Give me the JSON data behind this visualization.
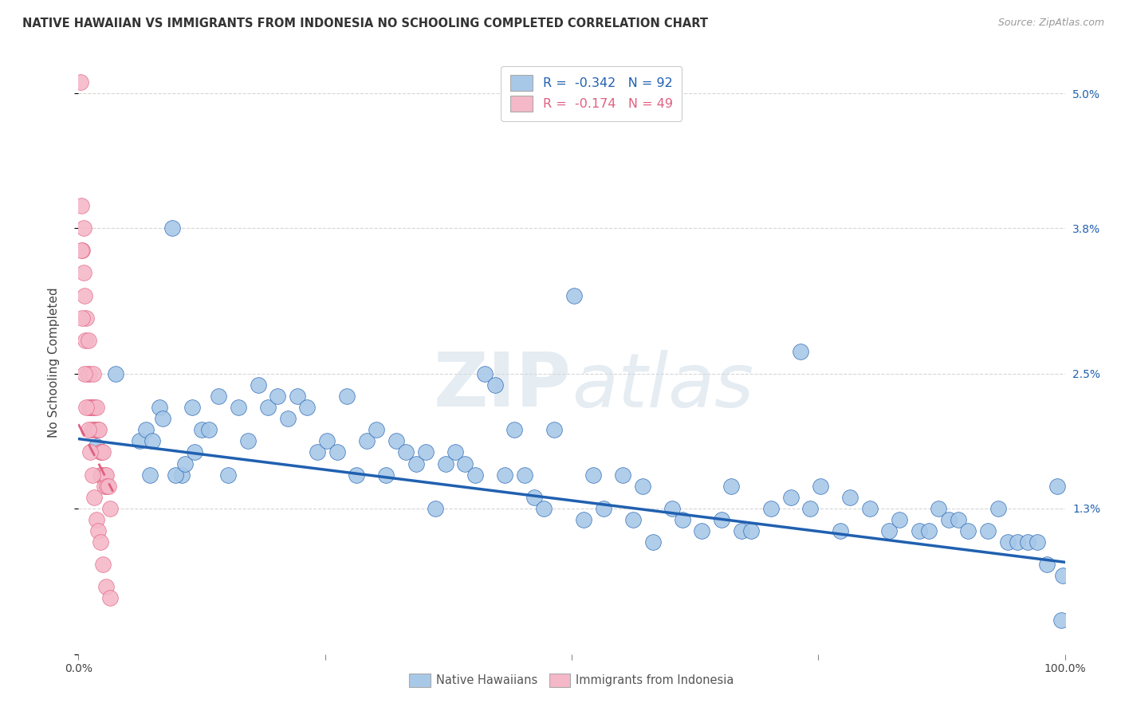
{
  "title": "NATIVE HAWAIIAN VS IMMIGRANTS FROM INDONESIA NO SCHOOLING COMPLETED CORRELATION CHART",
  "source": "Source: ZipAtlas.com",
  "ylabel": "No Schooling Completed",
  "watermark_zip": "ZIP",
  "watermark_atlas": "atlas",
  "legend_r1": "-0.342",
  "legend_n1": "92",
  "legend_r2": "-0.174",
  "legend_n2": "49",
  "xlim": [
    0.0,
    1.0
  ],
  "ylim": [
    0.0,
    0.052
  ],
  "xticks": [
    0.0,
    0.25,
    0.5,
    0.75,
    1.0
  ],
  "xticklabels": [
    "0.0%",
    "",
    "",
    "",
    "100.0%"
  ],
  "yticks": [
    0.0,
    0.013,
    0.025,
    0.038,
    0.05
  ],
  "yticklabels": [
    "",
    "1.3%",
    "2.5%",
    "3.8%",
    "5.0%"
  ],
  "color_blue": "#a8c8e8",
  "color_pink": "#f5b8c8",
  "line_blue": "#2060b0",
  "line_pink": "#e06080",
  "background": "#ffffff",
  "grid_color": "#cccccc",
  "blue_x": [
    0.018,
    0.038,
    0.062,
    0.068,
    0.072,
    0.082,
    0.095,
    0.105,
    0.115,
    0.125,
    0.132,
    0.142,
    0.152,
    0.162,
    0.172,
    0.182,
    0.192,
    0.202,
    0.212,
    0.222,
    0.232,
    0.242,
    0.252,
    0.262,
    0.272,
    0.282,
    0.292,
    0.302,
    0.312,
    0.322,
    0.332,
    0.342,
    0.352,
    0.362,
    0.372,
    0.382,
    0.392,
    0.402,
    0.412,
    0.422,
    0.432,
    0.442,
    0.452,
    0.462,
    0.472,
    0.482,
    0.502,
    0.512,
    0.522,
    0.532,
    0.552,
    0.562,
    0.572,
    0.582,
    0.602,
    0.612,
    0.632,
    0.652,
    0.662,
    0.672,
    0.682,
    0.702,
    0.722,
    0.732,
    0.742,
    0.752,
    0.772,
    0.782,
    0.802,
    0.822,
    0.832,
    0.852,
    0.862,
    0.872,
    0.882,
    0.892,
    0.902,
    0.922,
    0.932,
    0.942,
    0.952,
    0.962,
    0.972,
    0.982,
    0.992,
    0.996,
    0.998,
    0.075,
    0.085,
    0.098,
    0.108,
    0.118
  ],
  "blue_y": [
    0.0185,
    0.025,
    0.019,
    0.02,
    0.016,
    0.022,
    0.038,
    0.016,
    0.022,
    0.02,
    0.02,
    0.023,
    0.016,
    0.022,
    0.019,
    0.024,
    0.022,
    0.023,
    0.021,
    0.023,
    0.022,
    0.018,
    0.019,
    0.018,
    0.023,
    0.016,
    0.019,
    0.02,
    0.016,
    0.019,
    0.018,
    0.017,
    0.018,
    0.013,
    0.017,
    0.018,
    0.017,
    0.016,
    0.025,
    0.024,
    0.016,
    0.02,
    0.016,
    0.014,
    0.013,
    0.02,
    0.032,
    0.012,
    0.016,
    0.013,
    0.016,
    0.012,
    0.015,
    0.01,
    0.013,
    0.012,
    0.011,
    0.012,
    0.015,
    0.011,
    0.011,
    0.013,
    0.014,
    0.027,
    0.013,
    0.015,
    0.011,
    0.014,
    0.013,
    0.011,
    0.012,
    0.011,
    0.011,
    0.013,
    0.012,
    0.012,
    0.011,
    0.011,
    0.013,
    0.01,
    0.01,
    0.01,
    0.01,
    0.008,
    0.015,
    0.003,
    0.007,
    0.019,
    0.021,
    0.016,
    0.017,
    0.018
  ],
  "pink_x": [
    0.002,
    0.003,
    0.004,
    0.005,
    0.005,
    0.006,
    0.007,
    0.008,
    0.009,
    0.01,
    0.01,
    0.011,
    0.012,
    0.013,
    0.013,
    0.014,
    0.015,
    0.015,
    0.016,
    0.017,
    0.018,
    0.019,
    0.02,
    0.021,
    0.022,
    0.022,
    0.023,
    0.024,
    0.025,
    0.026,
    0.027,
    0.028,
    0.029,
    0.03,
    0.032,
    0.003,
    0.004,
    0.006,
    0.008,
    0.01,
    0.012,
    0.014,
    0.016,
    0.018,
    0.02,
    0.022,
    0.025,
    0.028,
    0.032
  ],
  "pink_y": [
    0.051,
    0.04,
    0.036,
    0.034,
    0.038,
    0.032,
    0.028,
    0.03,
    0.025,
    0.028,
    0.022,
    0.025,
    0.022,
    0.02,
    0.022,
    0.022,
    0.025,
    0.02,
    0.022,
    0.02,
    0.022,
    0.02,
    0.02,
    0.02,
    0.018,
    0.016,
    0.018,
    0.016,
    0.018,
    0.015,
    0.016,
    0.016,
    0.015,
    0.015,
    0.013,
    0.036,
    0.03,
    0.025,
    0.022,
    0.02,
    0.018,
    0.016,
    0.014,
    0.012,
    0.011,
    0.01,
    0.008,
    0.006,
    0.005
  ],
  "blue_line_x": [
    0.0,
    1.0
  ],
  "blue_line_y": [
    0.0192,
    0.0082
  ],
  "pink_line_x": [
    0.0,
    0.035
  ],
  "pink_line_y": [
    0.0205,
    0.0145
  ]
}
